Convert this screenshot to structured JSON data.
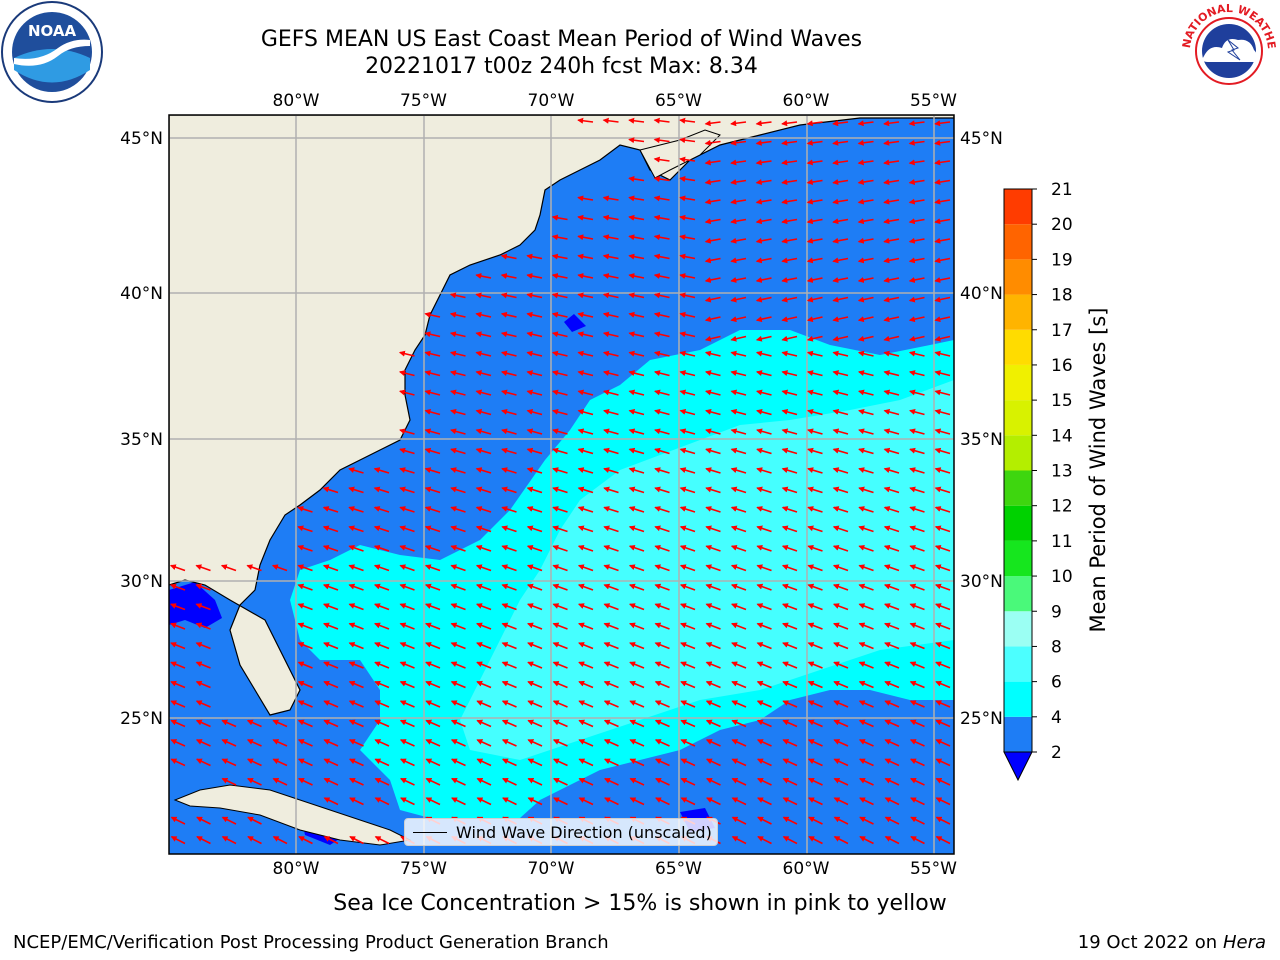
{
  "header": {
    "title_line1": "GEFS MEAN US East Coast Mean Period of Wind Waves",
    "title_line2": "20221017 t00z 240h fcst   Max: 8.34"
  },
  "logos": {
    "left": "noaa-logo",
    "right": "nws-logo",
    "left_text": "NOAA",
    "right_text": "NATIONAL WEATHER SERVICE"
  },
  "map": {
    "projection": "PlateCarree",
    "lon_range": [
      -85,
      -54.2
    ],
    "lat_range": [
      20.5,
      46
    ],
    "lon_ticks": [
      -80,
      -75,
      -70,
      -65,
      -60,
      -55
    ],
    "lat_ticks": [
      25,
      30,
      35,
      40,
      45
    ],
    "lon_tick_labels": [
      "80°W",
      "75°W",
      "70°W",
      "65°W",
      "60°W",
      "55°W"
    ],
    "lat_tick_labels": [
      "25°N",
      "30°N",
      "35°N",
      "40°N",
      "45°N"
    ],
    "grid": true,
    "land_color": "#efedde",
    "arrow_color": "#ff0000",
    "colors": {
      "blue_2_4": "#1e7df5",
      "cyan_4_6": "#00ffff",
      "lightcyan_6_8": "#4cffff",
      "under_2": "#0000ff"
    }
  },
  "legend": {
    "label": "Wind Wave Direction (unscaled)"
  },
  "colorbar": {
    "title": "Mean Period of Wind Waves [s]",
    "levels": [
      2,
      4,
      6,
      7,
      8,
      9,
      10,
      11,
      12,
      13,
      14,
      15,
      16,
      17,
      18,
      19,
      20,
      21
    ],
    "tick_labels": [
      "2",
      "4",
      "6",
      "8",
      "9",
      "10",
      "11",
      "12",
      "13",
      "14",
      "15",
      "16",
      "17",
      "18",
      "19",
      "20",
      "21"
    ],
    "tick_values": [
      2,
      4,
      6,
      8,
      9,
      10,
      11,
      12,
      13,
      14,
      15,
      16,
      17,
      18,
      19,
      20,
      21
    ],
    "colors": [
      "#1e7df5",
      "#00ffff",
      "#40ffff",
      "#80ffff",
      "#9bfff3",
      "#4af97a",
      "#16e61e",
      "#3ed60f",
      "#9ae606",
      "#c8f000",
      "#e6f20a",
      "#ffff00",
      "#ffd700",
      "#ffb000",
      "#ff8000",
      "#ff5000",
      "#ff2200",
      "#ff0000"
    ],
    "under_color": "#0000ff"
  },
  "notes": {
    "ice": "Sea Ice Concentration > 15% is shown in pink to yellow"
  },
  "footer": {
    "left": "NCEP/EMC/Verification Post Processing Product Generation Branch",
    "right_prefix": "19 Oct 2022 on ",
    "right_machine": "Hera"
  }
}
